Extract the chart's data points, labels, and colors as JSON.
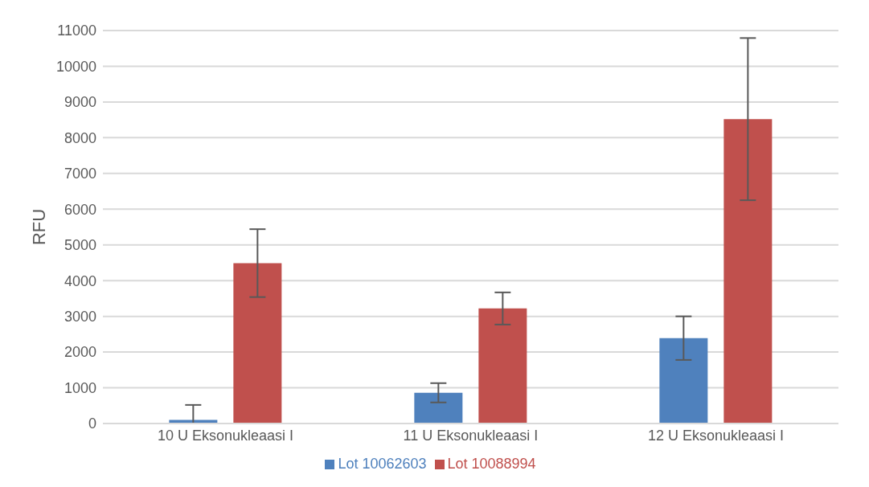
{
  "chart_data": {
    "type": "bar",
    "ylabel": "RFU",
    "categories": [
      "10 U Eksonukleaasi I",
      "11 U Eksonukleaasi I",
      "12 U Eksonukleaasi I"
    ],
    "series": [
      {
        "name": "Lot 10062603",
        "color": "#4f81bd",
        "values": [
          100,
          860,
          2390
        ],
        "errors": [
          [
            0,
            520
          ],
          270,
          610
        ]
      },
      {
        "name": "Lot 10088994",
        "color": "#c0504d",
        "values": [
          4490,
          3220,
          8520
        ],
        "errors": [
          950,
          450,
          2270
        ]
      }
    ],
    "ylim": [
      0,
      11000
    ],
    "yticks": [
      0,
      1000,
      2000,
      3000,
      4000,
      5000,
      6000,
      7000,
      8000,
      9000,
      10000,
      11000
    ],
    "grid": "y",
    "legend": "bottom"
  }
}
